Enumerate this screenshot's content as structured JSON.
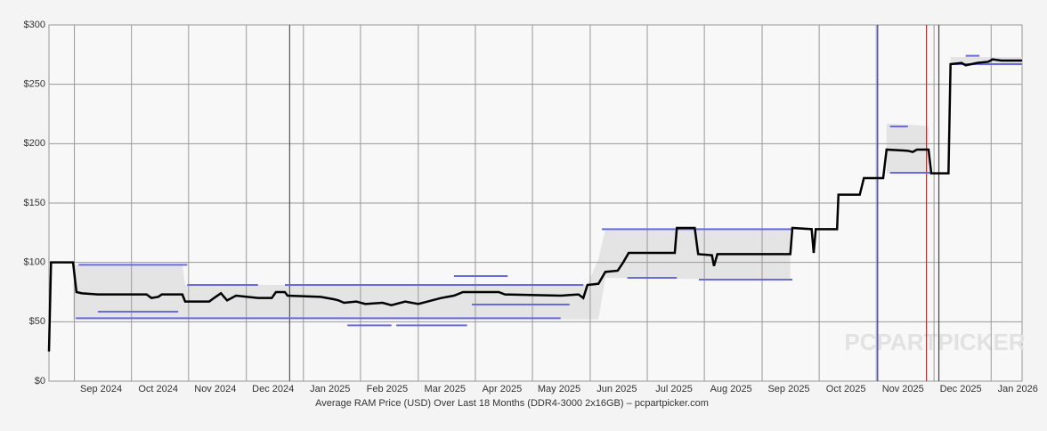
{
  "chart_data": {
    "type": "line",
    "xlabel": "Average RAM Price (USD) Over Last 18 Months (DDR4-3000 2x16GB) – pcpartpicker.com",
    "watermark": "PCPARTPICKER",
    "xlim": [
      2024.63,
      2026.045
    ],
    "ylim": [
      0,
      300
    ],
    "yticks": [
      {
        "value": 0,
        "label": "$0"
      },
      {
        "value": 50,
        "label": "$50"
      },
      {
        "value": 100,
        "label": "$100"
      },
      {
        "value": 150,
        "label": "$150"
      },
      {
        "value": 200,
        "label": "$200"
      },
      {
        "value": 250,
        "label": "$250"
      },
      {
        "value": 300,
        "label": "$300"
      }
    ],
    "xticks": [
      {
        "value": 2024.667,
        "label": "Sep 2024"
      },
      {
        "value": 2024.75,
        "label": "Oct 2024"
      },
      {
        "value": 2024.833,
        "label": "Nov 2024"
      },
      {
        "value": 2024.917,
        "label": "Dec 2024"
      },
      {
        "value": 2025,
        "label": "Jan 2025"
      },
      {
        "value": 2025.083,
        "label": "Feb 2025"
      },
      {
        "value": 2025.167,
        "label": "Mar 2025"
      },
      {
        "value": 2025.25,
        "label": "Apr 2025"
      },
      {
        "value": 2025.333,
        "label": "May 2025"
      },
      {
        "value": 2025.417,
        "label": "Jun 2025"
      },
      {
        "value": 2025.5,
        "label": "Jul 2025"
      },
      {
        "value": 2025.583,
        "label": "Aug 2025"
      },
      {
        "value": 2025.667,
        "label": "Sep 2025"
      },
      {
        "value": 2025.75,
        "label": "Oct 2025"
      },
      {
        "value": 2025.833,
        "label": "Nov 2025"
      },
      {
        "value": 2025.917,
        "label": "Dec 2025"
      },
      {
        "value": 2026,
        "label": "Jan 2026"
      }
    ],
    "grid": true,
    "markers": [
      {
        "x": 2024.98,
        "color": "#555555"
      },
      {
        "x": 2025.835,
        "color": "#3333aa"
      },
      {
        "x": 2025.906,
        "color": "#cc2222"
      },
      {
        "x": 2025.924,
        "color": "#444444"
      }
    ],
    "range": {
      "color": "#e4e4e4",
      "x": [
        2024.665,
        2024.824,
        2024.828,
        2025.413,
        2025.429,
        2025.439,
        2025.708,
        2025.711,
        2025.848,
        2025.909,
        2025.913,
        2025.941,
        2026.045
      ],
      "low": [
        52,
        52,
        52,
        52,
        52,
        87,
        85,
        null,
        175,
        175,
        null,
        266,
        266
      ],
      "high": [
        98,
        98,
        81,
        81,
        103,
        128,
        128,
        null,
        217,
        215,
        null,
        273,
        273
      ]
    },
    "segments": {
      "color": "#6a6ae0",
      "items": [
        {
          "x": [
            2024.673,
            2024.831
          ],
          "value": 98
        },
        {
          "x": [
            2024.669,
            2025.374
          ],
          "value": 53
        },
        {
          "x": [
            2024.701,
            2024.818
          ],
          "value": 58.5
        },
        {
          "x": [
            2024.831,
            2024.934
          ],
          "value": 81
        },
        {
          "x": [
            2024.973,
            2025.407
          ],
          "value": 81
        },
        {
          "x": [
            2025.064,
            2025.128
          ],
          "value": 47
        },
        {
          "x": [
            2025.135,
            2025.238
          ],
          "value": 47
        },
        {
          "x": [
            2025.219,
            2025.297
          ],
          "value": 88.5
        },
        {
          "x": [
            2025.245,
            2025.387
          ],
          "value": 64.5
        },
        {
          "x": [
            2025.434,
            2025.711
          ],
          "value": 128
        },
        {
          "x": [
            2025.471,
            2025.543
          ],
          "value": 87
        },
        {
          "x": [
            2025.575,
            2025.711
          ],
          "value": 85.5
        },
        {
          "x": [
            2025.853,
            2025.879
          ],
          "value": 214.5
        },
        {
          "x": [
            2025.853,
            2025.912
          ],
          "value": 175.5
        },
        {
          "x": [
            2025.941,
            2026.045
          ],
          "value": 267
        },
        {
          "x": [
            2025.963,
            2025.983
          ],
          "value": 274
        }
      ]
    },
    "series": [
      {
        "color": "#000000",
        "x": [
          2024.63,
          2024.633,
          2024.665,
          2024.67,
          2024.678,
          2024.701,
          2024.772,
          2024.779,
          2024.789,
          2024.794,
          2024.824,
          2024.828,
          2024.863,
          2024.87,
          2024.88,
          2024.889,
          2024.902,
          2024.934,
          2024.954,
          2024.96,
          2024.973,
          2024.977,
          2025.025,
          2025.044,
          2025.051,
          2025.059,
          2025.077,
          2025.09,
          2025.115,
          2025.128,
          2025.148,
          2025.167,
          2025.187,
          2025.2,
          2025.219,
          2025.232,
          2025.284,
          2025.293,
          2025.374,
          2025.4,
          2025.407,
          2025.413,
          2025.429,
          2025.439,
          2025.457,
          2025.465,
          2025.473,
          2025.54,
          2025.543,
          2025.569,
          2025.574,
          2025.594,
          2025.597,
          2025.602,
          2025.708,
          2025.711,
          2025.739,
          2025.742,
          2025.745,
          2025.776,
          2025.778,
          2025.809,
          2025.815,
          2025.843,
          2025.848,
          2025.879,
          2025.886,
          2025.892,
          2025.909,
          2025.913,
          2025.938,
          2025.941,
          2025.957,
          2025.963,
          2025.98,
          2025.996,
          2026.002,
          2026.015,
          2026.045
        ],
        "values": [
          25,
          100,
          100,
          75,
          74,
          73,
          73,
          70,
          71,
          73,
          73,
          67,
          67,
          70,
          74,
          68,
          72,
          70,
          70,
          75,
          75,
          72,
          71,
          69,
          68,
          66,
          67,
          65,
          66,
          64,
          67,
          65,
          68,
          70,
          72,
          75,
          75,
          73,
          72,
          73,
          70,
          81,
          82,
          92,
          93,
          100,
          108,
          108,
          129,
          129,
          107,
          106,
          97,
          107,
          107,
          129,
          128,
          108,
          128,
          128,
          157,
          157,
          171,
          171,
          195,
          194,
          193,
          195,
          195,
          175,
          175,
          267,
          268,
          266,
          268,
          269,
          271,
          270,
          270
        ]
      }
    ]
  }
}
